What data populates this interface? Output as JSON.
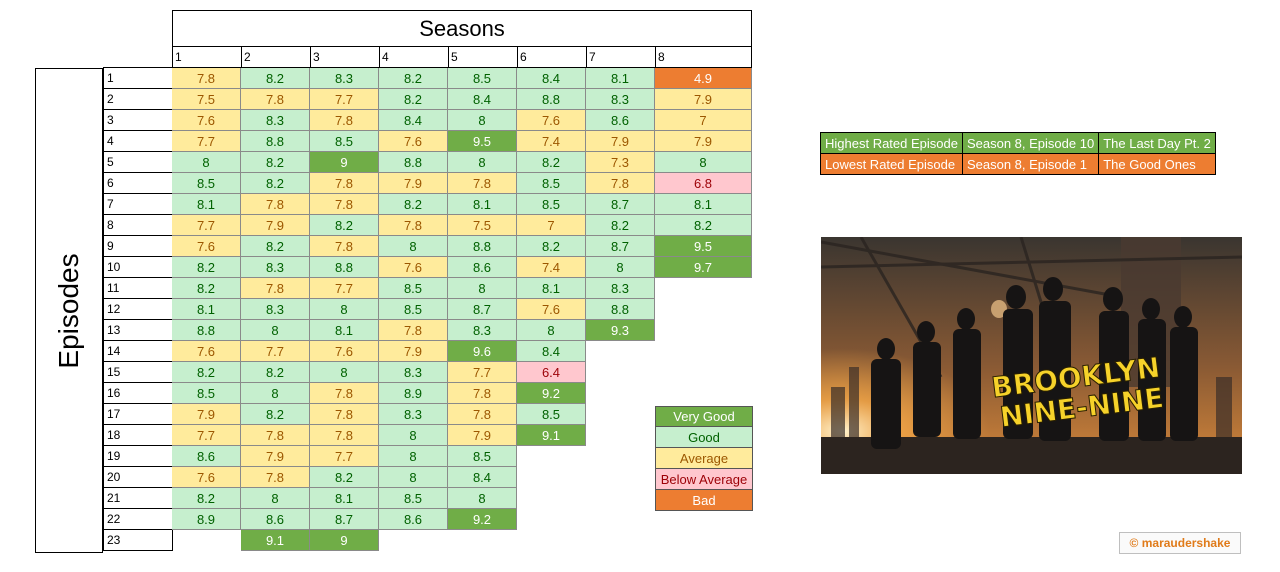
{
  "titles": {
    "seasons": "Seasons",
    "episodes": "Episodes"
  },
  "colors": {
    "very_good": "#70ad47",
    "good": "#c6efce",
    "average": "#ffeb9c",
    "below_average": "#ffc7ce",
    "bad": "#ed7d31",
    "text_very_good": "#ffffff",
    "text_good": "#006100",
    "text_average": "#9c5700",
    "text_below_average": "#9c0006",
    "text_bad": "#ffffff"
  },
  "chart_data": {
    "type": "heatmap",
    "title": "Seasons",
    "xlabel": "Seasons",
    "ylabel": "Episodes",
    "seasons": [
      "1",
      "2",
      "3",
      "4",
      "5",
      "6",
      "7",
      "8"
    ],
    "episodes": [
      "1",
      "2",
      "3",
      "4",
      "5",
      "6",
      "7",
      "8",
      "9",
      "10",
      "11",
      "12",
      "13",
      "14",
      "15",
      "16",
      "17",
      "18",
      "19",
      "20",
      "21",
      "22",
      "23"
    ],
    "ratings": [
      [
        "7.8",
        "7.5",
        "7.6",
        "7.7",
        "8",
        "8.5",
        "8.1",
        "7.7",
        "7.6",
        "8.2",
        "8.2",
        "8.1",
        "8.8",
        "7.6",
        "8.2",
        "8.5",
        "7.9",
        "7.7",
        "8.6",
        "7.6",
        "8.2",
        "8.9"
      ],
      [
        "8.2",
        "7.8",
        "8.3",
        "8.8",
        "8.2",
        "8.2",
        "7.8",
        "7.9",
        "8.2",
        "8.3",
        "7.8",
        "8.3",
        "8",
        "7.7",
        "8.2",
        "8",
        "8.2",
        "7.8",
        "7.9",
        "7.8",
        "8",
        "8.6",
        "9.1"
      ],
      [
        "8.3",
        "7.7",
        "7.8",
        "8.5",
        "9",
        "7.8",
        "7.8",
        "8.2",
        "7.8",
        "8.8",
        "7.7",
        "8",
        "8.1",
        "7.6",
        "8",
        "7.8",
        "7.8",
        "7.8",
        "7.7",
        "8.2",
        "8.1",
        "8.7",
        "9"
      ],
      [
        "8.2",
        "8.2",
        "8.4",
        "7.6",
        "8.8",
        "7.9",
        "8.2",
        "7.8",
        "8",
        "7.6",
        "8.5",
        "8.5",
        "7.8",
        "7.9",
        "8.3",
        "8.9",
        "8.3",
        "8",
        "8",
        "8",
        "8.5",
        "8.6"
      ],
      [
        "8.5",
        "8.4",
        "8",
        "9.5",
        "8",
        "7.8",
        "8.1",
        "7.5",
        "8.8",
        "8.6",
        "8",
        "8.7",
        "8.3",
        "9.6",
        "7.7",
        "7.8",
        "7.8",
        "7.9",
        "8.5",
        "8.4",
        "8",
        "9.2"
      ],
      [
        "8.4",
        "8.8",
        "7.6",
        "7.4",
        "8.2",
        "8.5",
        "8.5",
        "7",
        "8.2",
        "7.4",
        "8.1",
        "7.6",
        "8",
        "8.4",
        "6.4",
        "9.2",
        "8.5",
        "9.1"
      ],
      [
        "8.1",
        "8.3",
        "8.6",
        "7.9",
        "7.3",
        "7.8",
        "8.7",
        "8.2",
        "8.7",
        "8",
        "8.3",
        "8.8",
        "9.3"
      ],
      [
        "4.9",
        "7.9",
        "7",
        "7.9",
        "8",
        "6.8",
        "8.1",
        "8.2",
        "9.5",
        "9.7"
      ]
    ],
    "categories": {
      "Very Good": [
        "9.0",
        "10.0"
      ],
      "Good": [
        "8.0",
        "8.9"
      ],
      "Average": [
        "7.0",
        "7.9"
      ],
      "Below Average": [
        "6.0",
        "6.9"
      ],
      "Bad": [
        "0",
        "5.9"
      ]
    }
  },
  "legend": [
    {
      "label": "Very Good",
      "key": "very_good"
    },
    {
      "label": "Good",
      "key": "good"
    },
    {
      "label": "Average",
      "key": "average"
    },
    {
      "label": "Below Average",
      "key": "below_average"
    },
    {
      "label": "Bad",
      "key": "bad"
    }
  ],
  "highlights": {
    "highest": {
      "label": "Highest Rated Episode",
      "episode": "Season 8, Episode 10",
      "title": "The Last Day Pt. 2"
    },
    "lowest": {
      "label": "Lowest Rated Episode",
      "episode": "Season 8, Episode 1",
      "title": "The Good Ones"
    }
  },
  "poster": {
    "line1": "BROOKLYN",
    "line2": "NINE-NINE"
  },
  "credit": "© maraudershake"
}
